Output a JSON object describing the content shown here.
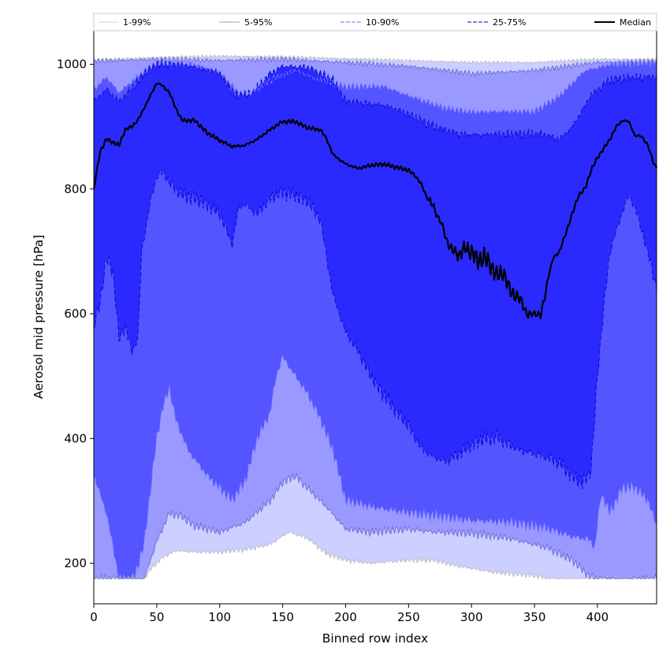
{
  "chart_data": {
    "type": "area",
    "xlabel": "Binned row index",
    "ylabel": "Aerosol mid pressure [hPa]",
    "xlim": [
      0,
      447
    ],
    "ylim": [
      135,
      1055
    ],
    "x_ticks": [
      0,
      50,
      100,
      150,
      200,
      250,
      300,
      350,
      400
    ],
    "y_ticks": [
      200,
      400,
      600,
      800,
      1000
    ],
    "grid": false,
    "legend_position": "top",
    "floor_value": 175,
    "bands": [
      {
        "name": "1-99%",
        "fill": "#cccfff",
        "line_color": "#bbbbbb",
        "dash": "",
        "lower": [
          [
            0,
            175
          ],
          [
            40,
            175
          ],
          [
            45,
            190
          ],
          [
            55,
            210
          ],
          [
            65,
            220
          ],
          [
            80,
            218
          ],
          [
            100,
            218
          ],
          [
            120,
            222
          ],
          [
            140,
            230
          ],
          [
            155,
            250
          ],
          [
            170,
            240
          ],
          [
            185,
            215
          ],
          [
            200,
            205
          ],
          [
            220,
            200
          ],
          [
            250,
            205
          ],
          [
            270,
            205
          ],
          [
            290,
            195
          ],
          [
            320,
            185
          ],
          [
            350,
            180
          ],
          [
            360,
            175
          ],
          [
            447,
            175
          ]
        ],
        "upper": [
          [
            0,
            1007
          ],
          [
            50,
            1011
          ],
          [
            100,
            1013
          ],
          [
            150,
            1012
          ],
          [
            200,
            1009
          ],
          [
            250,
            1006
          ],
          [
            300,
            1003
          ],
          [
            350,
            1003
          ],
          [
            400,
            1008
          ],
          [
            447,
            1008
          ]
        ]
      },
      {
        "name": "5-95%",
        "fill": "#9999ff",
        "line_color": "#6666cc",
        "dash": "",
        "lower": [
          [
            0,
            175
          ],
          [
            40,
            175
          ],
          [
            50,
            235
          ],
          [
            60,
            280
          ],
          [
            70,
            275
          ],
          [
            80,
            260
          ],
          [
            100,
            250
          ],
          [
            120,
            265
          ],
          [
            140,
            300
          ],
          [
            150,
            330
          ],
          [
            160,
            340
          ],
          [
            170,
            320
          ],
          [
            185,
            290
          ],
          [
            200,
            255
          ],
          [
            220,
            250
          ],
          [
            250,
            255
          ],
          [
            270,
            250
          ],
          [
            300,
            248
          ],
          [
            330,
            240
          ],
          [
            360,
            225
          ],
          [
            380,
            205
          ],
          [
            393,
            180
          ],
          [
            400,
            175
          ],
          [
            420,
            175
          ],
          [
            447,
            175
          ]
        ],
        "upper": [
          [
            0,
            1005
          ],
          [
            50,
            1008
          ],
          [
            100,
            1006
          ],
          [
            150,
            1008
          ],
          [
            200,
            1003
          ],
          [
            250,
            997
          ],
          [
            300,
            985
          ],
          [
            350,
            990
          ],
          [
            400,
            1003
          ],
          [
            447,
            1005
          ]
        ]
      },
      {
        "name": "10-90%",
        "fill": "#5555ff",
        "line_color": "#8888ff",
        "dash": "6,3",
        "lower": [
          [
            0,
            340
          ],
          [
            10,
            280
          ],
          [
            20,
            175
          ],
          [
            32,
            175
          ],
          [
            40,
            230
          ],
          [
            50,
            400
          ],
          [
            55,
            450
          ],
          [
            60,
            480
          ],
          [
            65,
            430
          ],
          [
            75,
            380
          ],
          [
            90,
            340
          ],
          [
            100,
            320
          ],
          [
            110,
            300
          ],
          [
            120,
            330
          ],
          [
            130,
            400
          ],
          [
            140,
            440
          ],
          [
            145,
            500
          ],
          [
            150,
            530
          ],
          [
            160,
            500
          ],
          [
            170,
            470
          ],
          [
            180,
            430
          ],
          [
            190,
            380
          ],
          [
            200,
            300
          ],
          [
            220,
            290
          ],
          [
            250,
            280
          ],
          [
            270,
            275
          ],
          [
            300,
            268
          ],
          [
            330,
            265
          ],
          [
            360,
            255
          ],
          [
            380,
            242
          ],
          [
            393,
            238
          ],
          [
            398,
            225
          ],
          [
            403,
            310
          ],
          [
            410,
            280
          ],
          [
            420,
            320
          ],
          [
            430,
            320
          ],
          [
            440,
            300
          ],
          [
            447,
            260
          ]
        ],
        "upper": [
          [
            0,
            960
          ],
          [
            10,
            980
          ],
          [
            20,
            955
          ],
          [
            40,
            990
          ],
          [
            50,
            1002
          ],
          [
            60,
            1002
          ],
          [
            80,
            1000
          ],
          [
            100,
            988
          ],
          [
            115,
            955
          ],
          [
            125,
            952
          ],
          [
            140,
            975
          ],
          [
            160,
            990
          ],
          [
            180,
            975
          ],
          [
            200,
            965
          ],
          [
            230,
            965
          ],
          [
            250,
            950
          ],
          [
            280,
            930
          ],
          [
            300,
            924
          ],
          [
            330,
            925
          ],
          [
            350,
            925
          ],
          [
            370,
            950
          ],
          [
            390,
            990
          ],
          [
            410,
            1000
          ],
          [
            430,
            1002
          ],
          [
            447,
            1003
          ]
        ]
      },
      {
        "name": "25-75%",
        "fill": "#2a2aff",
        "line_color": "#0000cc",
        "dash": "6,3",
        "lower": [
          [
            0,
            580
          ],
          [
            5,
            620
          ],
          [
            10,
            690
          ],
          [
            15,
            670
          ],
          [
            20,
            560
          ],
          [
            25,
            580
          ],
          [
            30,
            540
          ],
          [
            35,
            560
          ],
          [
            38,
            700
          ],
          [
            45,
            780
          ],
          [
            50,
            820
          ],
          [
            55,
            828
          ],
          [
            60,
            810
          ],
          [
            70,
            790
          ],
          [
            80,
            785
          ],
          [
            90,
            775
          ],
          [
            100,
            760
          ],
          [
            110,
            712
          ],
          [
            115,
            770
          ],
          [
            120,
            775
          ],
          [
            130,
            760
          ],
          [
            140,
            785
          ],
          [
            150,
            795
          ],
          [
            160,
            790
          ],
          [
            170,
            780
          ],
          [
            180,
            750
          ],
          [
            190,
            630
          ],
          [
            200,
            570
          ],
          [
            210,
            540
          ],
          [
            220,
            500
          ],
          [
            230,
            470
          ],
          [
            250,
            420
          ],
          [
            260,
            385
          ],
          [
            270,
            370
          ],
          [
            280,
            363
          ],
          [
            290,
            375
          ],
          [
            300,
            390
          ],
          [
            310,
            400
          ],
          [
            320,
            402
          ],
          [
            330,
            390
          ],
          [
            340,
            380
          ],
          [
            350,
            375
          ],
          [
            360,
            370
          ],
          [
            370,
            360
          ],
          [
            380,
            340
          ],
          [
            388,
            328
          ],
          [
            395,
            350
          ],
          [
            400,
            500
          ],
          [
            405,
            610
          ],
          [
            410,
            700
          ],
          [
            420,
            765
          ],
          [
            425,
            790
          ],
          [
            430,
            770
          ],
          [
            440,
            700
          ],
          [
            447,
            640
          ]
        ],
        "upper": [
          [
            0,
            940
          ],
          [
            10,
            960
          ],
          [
            20,
            940
          ],
          [
            30,
            960
          ],
          [
            40,
            985
          ],
          [
            50,
            1000
          ],
          [
            70,
            1000
          ],
          [
            100,
            985
          ],
          [
            112,
            950
          ],
          [
            125,
            952
          ],
          [
            140,
            985
          ],
          [
            150,
            997
          ],
          [
            170,
            995
          ],
          [
            190,
            975
          ],
          [
            200,
            940
          ],
          [
            230,
            935
          ],
          [
            250,
            920
          ],
          [
            270,
            900
          ],
          [
            290,
            888
          ],
          [
            310,
            887
          ],
          [
            330,
            888
          ],
          [
            355,
            888
          ],
          [
            370,
            880
          ],
          [
            380,
            900
          ],
          [
            395,
            950
          ],
          [
            410,
            975
          ],
          [
            425,
            978
          ],
          [
            447,
            980
          ]
        ]
      }
    ],
    "median": {
      "name": "Median",
      "color": "#000000",
      "points": [
        [
          0,
          800
        ],
        [
          5,
          860
        ],
        [
          10,
          880
        ],
        [
          15,
          875
        ],
        [
          20,
          870
        ],
        [
          25,
          895
        ],
        [
          30,
          900
        ],
        [
          35,
          910
        ],
        [
          40,
          930
        ],
        [
          45,
          950
        ],
        [
          50,
          970
        ],
        [
          55,
          965
        ],
        [
          60,
          955
        ],
        [
          65,
          930
        ],
        [
          70,
          910
        ],
        [
          80,
          910
        ],
        [
          90,
          890
        ],
        [
          100,
          878
        ],
        [
          110,
          868
        ],
        [
          120,
          870
        ],
        [
          130,
          880
        ],
        [
          140,
          895
        ],
        [
          150,
          908
        ],
        [
          160,
          908
        ],
        [
          170,
          898
        ],
        [
          180,
          895
        ],
        [
          185,
          880
        ],
        [
          190,
          855
        ],
        [
          200,
          840
        ],
        [
          210,
          833
        ],
        [
          220,
          838
        ],
        [
          230,
          840
        ],
        [
          240,
          835
        ],
        [
          250,
          830
        ],
        [
          255,
          822
        ],
        [
          260,
          808
        ],
        [
          265,
          785
        ],
        [
          270,
          770
        ],
        [
          275,
          750
        ],
        [
          280,
          720
        ],
        [
          285,
          700
        ],
        [
          290,
          695
        ],
        [
          295,
          705
        ],
        [
          300,
          700
        ],
        [
          305,
          685
        ],
        [
          310,
          690
        ],
        [
          315,
          680
        ],
        [
          320,
          660
        ],
        [
          325,
          668
        ],
        [
          330,
          640
        ],
        [
          335,
          628
        ],
        [
          340,
          620
        ],
        [
          345,
          595
        ],
        [
          350,
          603
        ],
        [
          355,
          595
        ],
        [
          360,
          650
        ],
        [
          365,
          690
        ],
        [
          370,
          700
        ],
        [
          375,
          730
        ],
        [
          380,
          760
        ],
        [
          385,
          790
        ],
        [
          390,
          800
        ],
        [
          395,
          830
        ],
        [
          400,
          850
        ],
        [
          405,
          865
        ],
        [
          410,
          880
        ],
        [
          415,
          900
        ],
        [
          420,
          910
        ],
        [
          425,
          908
        ],
        [
          430,
          885
        ],
        [
          435,
          885
        ],
        [
          440,
          870
        ],
        [
          445,
          840
        ],
        [
          447,
          835
        ]
      ]
    },
    "legend": [
      "1-99%",
      "5-95%",
      "10-90%",
      "25-75%",
      "Median"
    ]
  }
}
